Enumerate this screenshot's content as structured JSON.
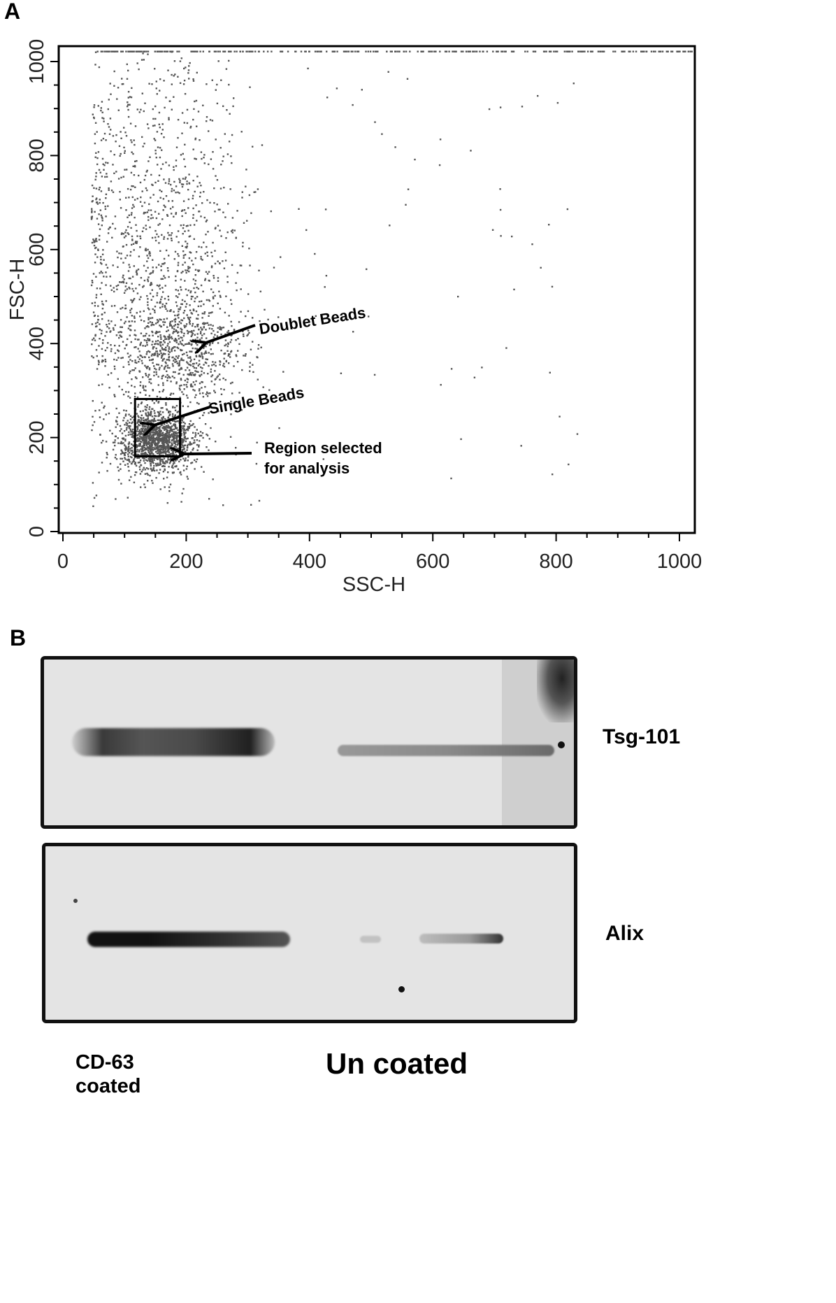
{
  "panel_a": {
    "letter": "A",
    "chart_data": {
      "type": "scatter",
      "xlabel": "SSC-H",
      "ylabel": "FSC-H",
      "xlim": [
        0,
        1023
      ],
      "ylim": [
        0,
        1023
      ],
      "xticks": [
        "0",
        "200",
        "400",
        "600",
        "800",
        "1000"
      ],
      "yticks": [
        "0",
        "200",
        "400",
        "600",
        "800",
        "1000"
      ],
      "tick_values": [
        0,
        200,
        400,
        600,
        800,
        1000
      ],
      "point_color": "#555555",
      "populations": [
        {
          "description_center": [
            150,
            195
          ],
          "spread": [
            30,
            32
          ],
          "count": 1400
        },
        {
          "description_center": [
            190,
            390
          ],
          "spread": [
            55,
            55
          ],
          "count": 700
        },
        {
          "description_center": [
            150,
            600
          ],
          "spread": [
            75,
            220
          ],
          "count": 1300
        }
      ],
      "saturation_row_y": 1023,
      "selected_region": {
        "x": [
          117,
          190
        ],
        "y": [
          160,
          282
        ]
      },
      "annotations": [
        {
          "text": "Doublet Beads",
          "arrow_to": [
            228,
            400
          ]
        },
        {
          "text": "Single Beads",
          "arrow_to": [
            145,
            225
          ]
        },
        {
          "text": "Region selected\nfor analysis",
          "arrow_to": [
            192,
            165
          ]
        }
      ]
    }
  },
  "panel_b": {
    "letter": "B",
    "blots": [
      {
        "label": "Tsg-101"
      },
      {
        "label": "Alix"
      }
    ],
    "lanes": [
      {
        "label": "CD-63\ncoated"
      },
      {
        "label": "Un coated"
      }
    ]
  }
}
